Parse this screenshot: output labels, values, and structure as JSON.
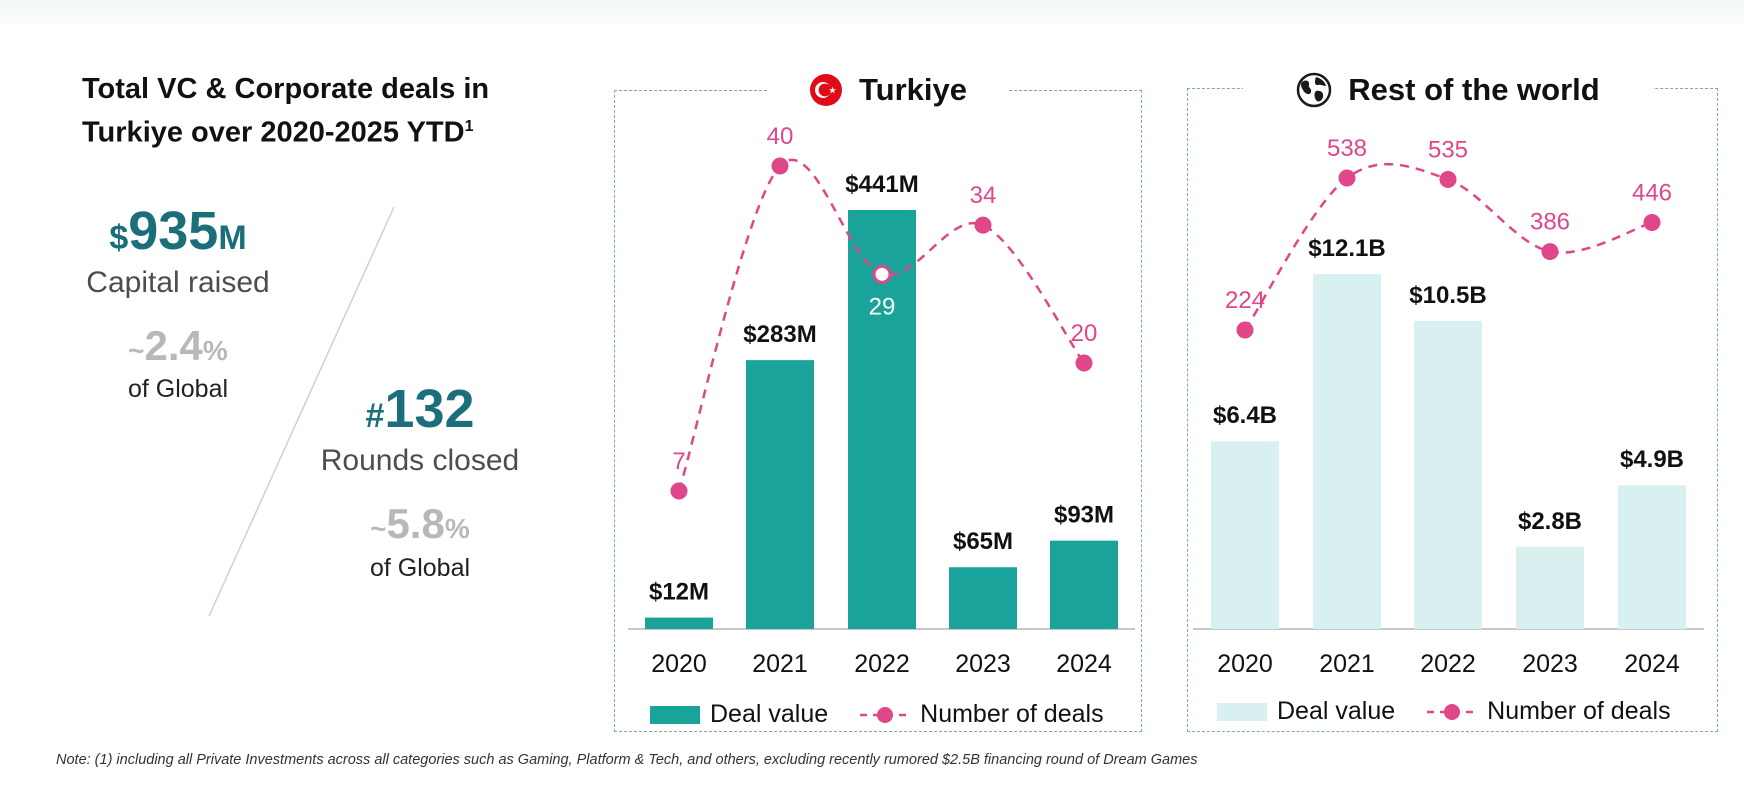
{
  "page": {
    "title_line1": "Total VC & Corporate deals in",
    "title_line2": "Turkiye over 2020-2025 YTD",
    "title_sup": "1",
    "note": "Note: (1) including all Private Investments across all categories such as Gaming, Platform & Tech, and others, excluding recently rumored $2.5B financing round of Dream Games"
  },
  "kpis": {
    "capital": {
      "prefix": "$",
      "value": "935",
      "suffix": "M",
      "label": "Capital raised",
      "share_prefix": "~",
      "share_value": "2.4",
      "share_suffix": "%",
      "share_label": "of Global"
    },
    "rounds": {
      "prefix": "#",
      "value": "132",
      "label": "Rounds closed",
      "share_prefix": "~",
      "share_value": "5.8",
      "share_suffix": "%",
      "share_label": "of Global"
    }
  },
  "colors": {
    "kpi_teal": "#1b6f7a",
    "bar_turkiye": "#1aa39a",
    "bar_world": "#d9f0f0",
    "deals_line": "#e0468a",
    "panel_border": "#79aeb0"
  },
  "chart_data": [
    {
      "type": "bar",
      "title": "Turkiye",
      "icon": "turkey-flag-icon",
      "categories": [
        "2020",
        "2021",
        "2022",
        "2023",
        "2024"
      ],
      "series": [
        {
          "name": "Deal value",
          "type": "bar",
          "unit": "$M",
          "values": [
            12,
            283,
            441,
            65,
            93
          ],
          "labels": [
            "$12M",
            "$283M",
            "$441M",
            "$65M",
            "$93M"
          ]
        },
        {
          "name": "Number of deals",
          "type": "line",
          "style": "dashed",
          "values": [
            7,
            40,
            29,
            34,
            20
          ],
          "labels": [
            "7",
            "40",
            "29",
            "34",
            "20"
          ]
        }
      ],
      "legend": [
        "Deal value",
        "Number of deals"
      ],
      "legend_position": "bottom",
      "grid": false
    },
    {
      "type": "bar",
      "title": "Rest of the world",
      "icon": "globe-icon",
      "categories": [
        "2020",
        "2021",
        "2022",
        "2023",
        "2024"
      ],
      "series": [
        {
          "name": "Deal value",
          "type": "bar",
          "unit": "$B",
          "values": [
            6.4,
            12.1,
            10.5,
            2.8,
            4.9
          ],
          "labels": [
            "$6.4B",
            "$12.1B",
            "$10.5B",
            "$2.8B",
            "$4.9B"
          ]
        },
        {
          "name": "Number of deals",
          "type": "line",
          "style": "dashed",
          "values": [
            224,
            538,
            535,
            386,
            446
          ],
          "labels": [
            "224",
            "538",
            "535",
            "386",
            "446"
          ]
        }
      ],
      "legend": [
        "Deal value",
        "Number of deals"
      ],
      "legend_position": "bottom",
      "grid": false
    }
  ]
}
